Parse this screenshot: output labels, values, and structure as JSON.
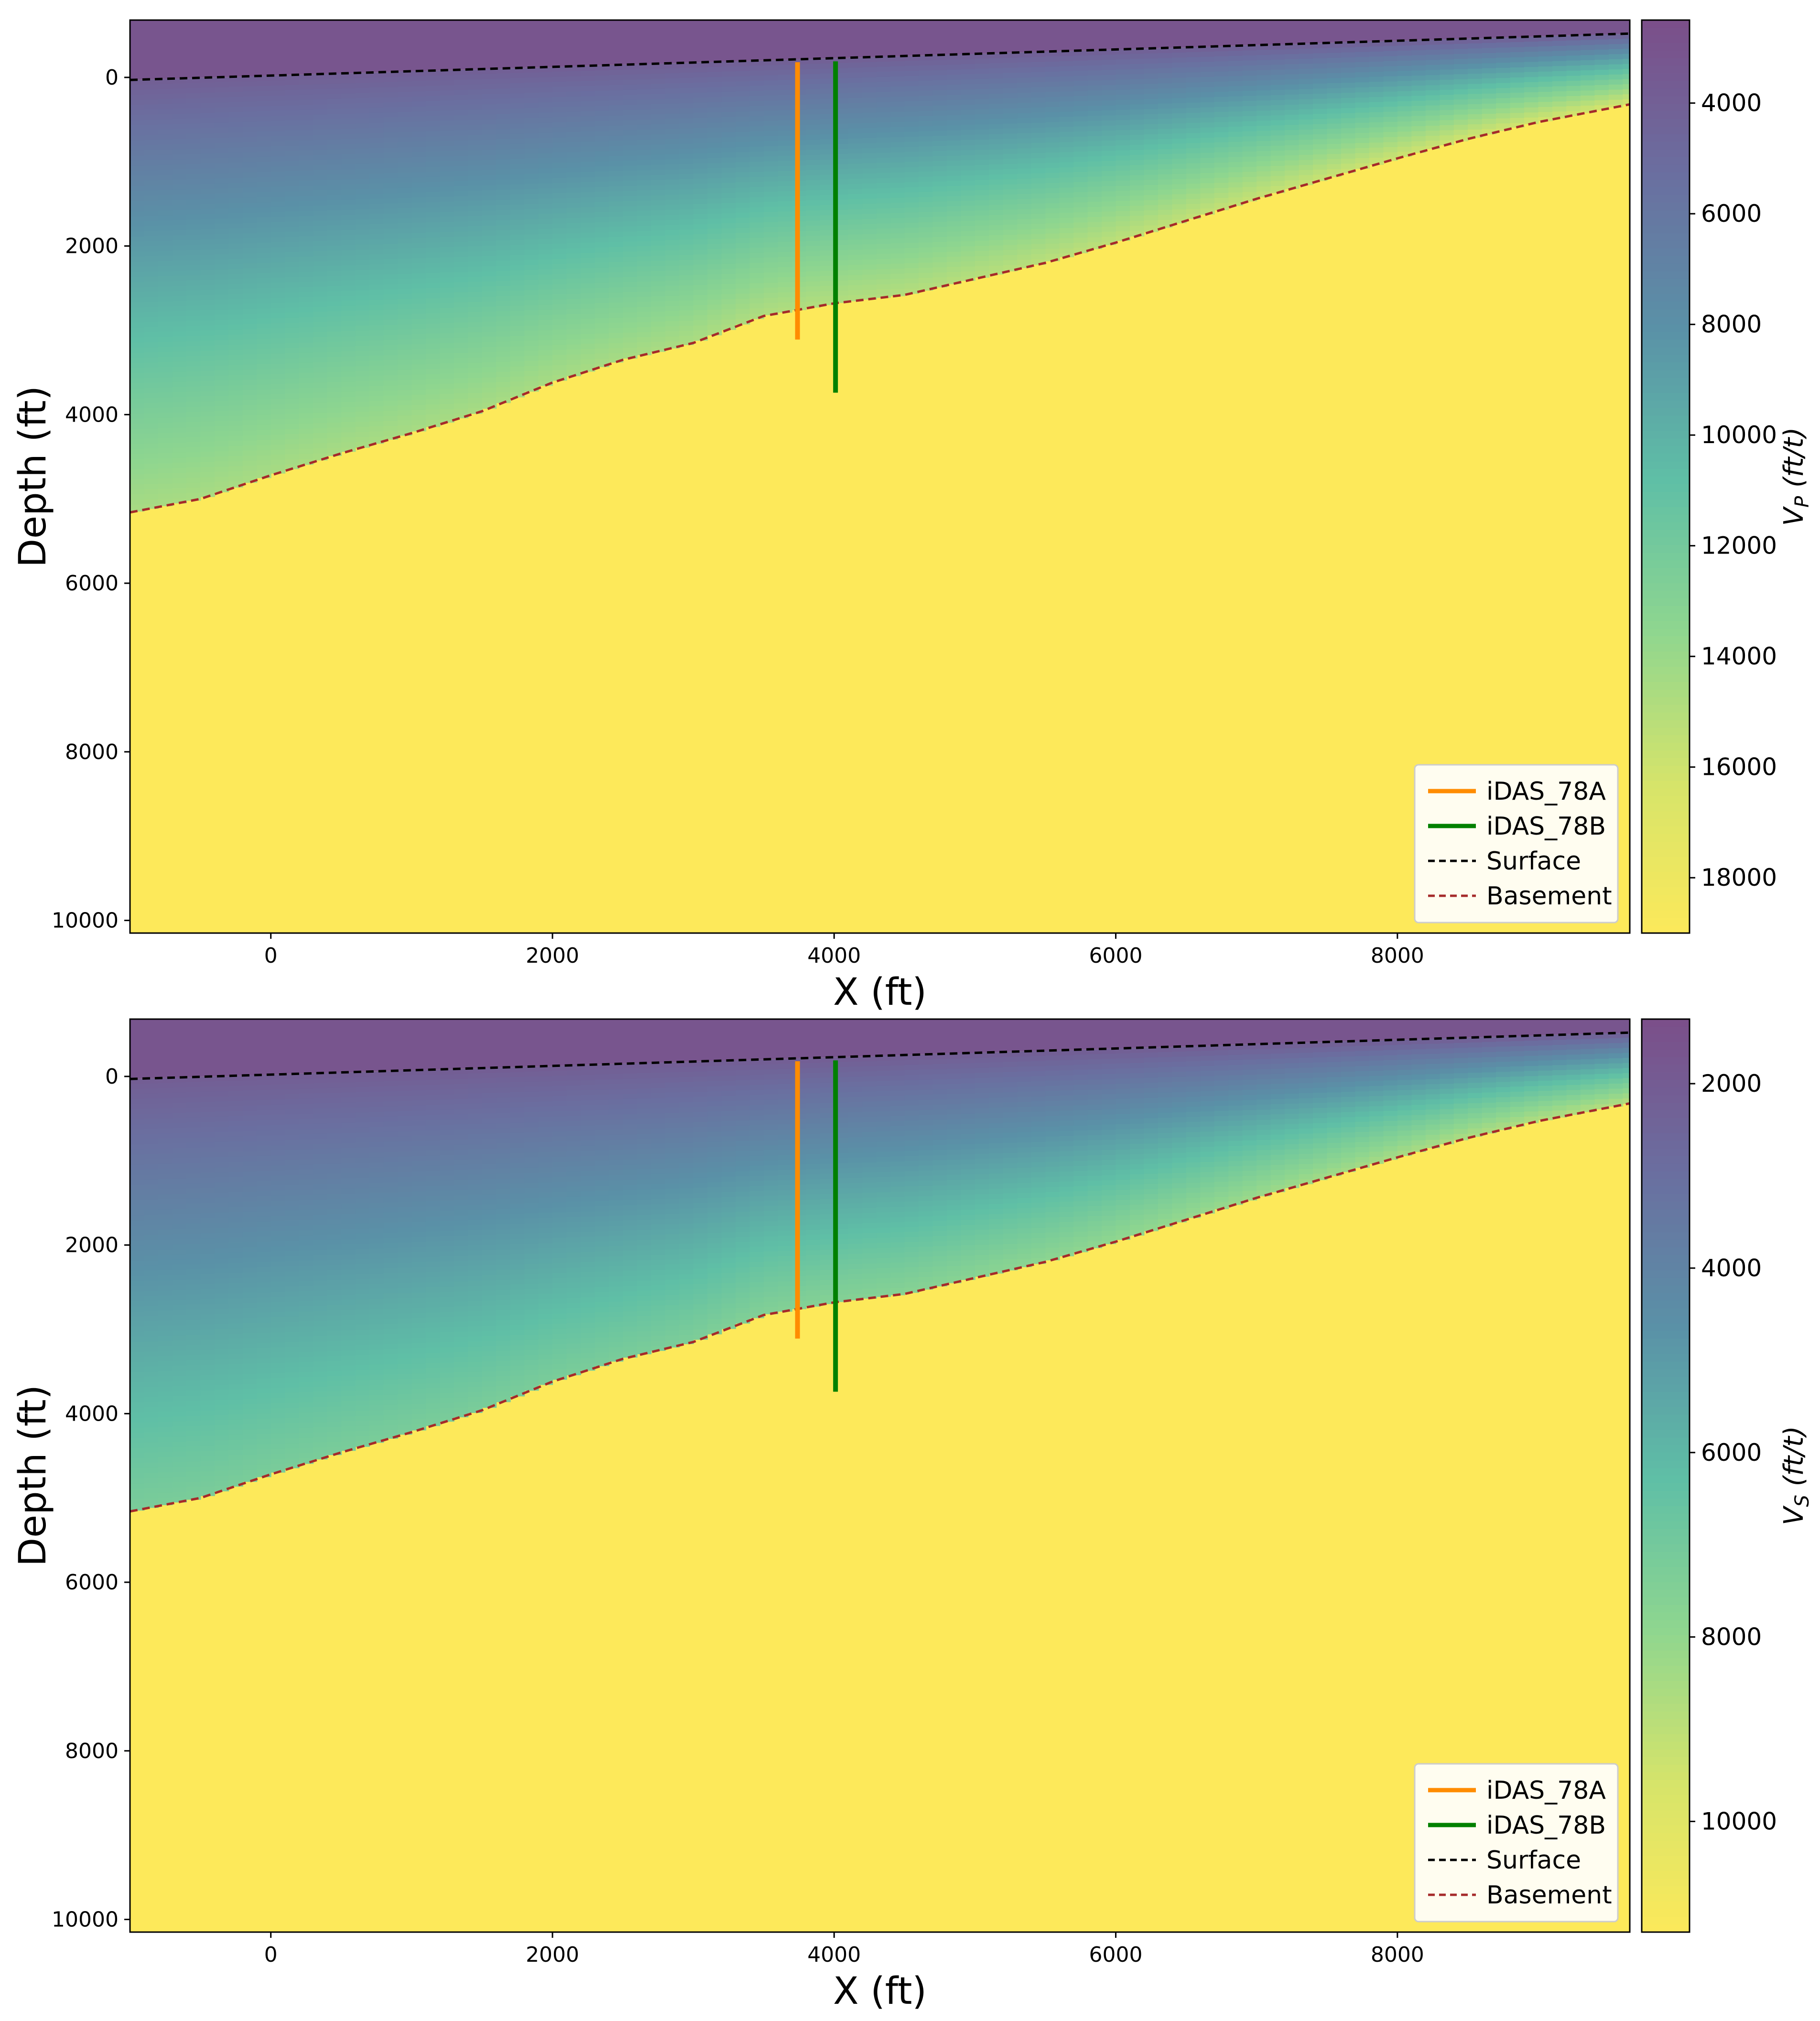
{
  "colors": {
    "basement_fill": "#fde95a",
    "iDAS_78A": "#ff8c00",
    "iDAS_78B": "#008000",
    "surface_line": "#000000",
    "basement_line": "#a52a2a",
    "colormap": [
      "#7b4f8a",
      "#6a6fa0",
      "#5a91a7",
      "#5fbfa6",
      "#8fd68f",
      "#d6e46a",
      "#fde95a"
    ]
  },
  "chart_data": [
    {
      "type": "heatmap",
      "title": "",
      "xlabel": "X (ft)",
      "ylabel": "Depth (ft)",
      "xlim": [
        -1000,
        9650
      ],
      "ylim": [
        10150,
        -680
      ],
      "x_ticks": [
        "0",
        "2000",
        "4000",
        "6000",
        "8000"
      ],
      "y_ticks": [
        "0",
        "2000",
        "4000",
        "6000",
        "8000",
        "10000"
      ],
      "colorbar": {
        "label": "V_P (ft/t)",
        "range": [
          2500,
          19000
        ],
        "ticks": [
          "4000",
          "6000",
          "8000",
          "10000",
          "12000",
          "14000",
          "16000",
          "18000"
        ]
      },
      "field": {
        "surface_value": 3800,
        "max_sediment_value": 14500,
        "basement_value": 19000
      },
      "grid": false,
      "legend_position": "lower-right",
      "legend": [
        "iDAS_78A",
        "iDAS_78B",
        "Surface",
        "Basement"
      ],
      "series": [
        {
          "name": "iDAS_78A",
          "kind": "well",
          "x": 3740,
          "depth_range": [
            -180,
            3110
          ]
        },
        {
          "name": "iDAS_78B",
          "kind": "well",
          "x": 4010,
          "depth_range": [
            -190,
            3740
          ]
        },
        {
          "name": "Surface",
          "kind": "dashed-line",
          "x": [
            -1000,
            9650
          ],
          "y": [
            30,
            -520
          ]
        },
        {
          "name": "Basement",
          "kind": "dashed-line",
          "x": [
            -1000,
            -500,
            0,
            500,
            1000,
            1500,
            2000,
            2500,
            3000,
            3500,
            4000,
            4500,
            5000,
            5500,
            6000,
            6500,
            7000,
            7500,
            8000,
            8500,
            9000,
            9650
          ],
          "y": [
            5160,
            5000,
            4720,
            4460,
            4220,
            3960,
            3620,
            3350,
            3150,
            2830,
            2680,
            2580,
            2390,
            2200,
            1960,
            1700,
            1440,
            1200,
            960,
            730,
            530,
            320
          ]
        }
      ]
    },
    {
      "type": "heatmap",
      "title": "",
      "xlabel": "X (ft)",
      "ylabel": "Depth (ft)",
      "xlim": [
        -1000,
        9650
      ],
      "ylim": [
        10150,
        -680
      ],
      "x_ticks": [
        "0",
        "2000",
        "4000",
        "6000",
        "8000"
      ],
      "y_ticks": [
        "0",
        "2000",
        "4000",
        "6000",
        "8000",
        "10000"
      ],
      "colorbar": {
        "label": "V_S (ft/t)",
        "range": [
          1300,
          11200
        ],
        "ticks": [
          "2000",
          "4000",
          "6000",
          "8000",
          "10000"
        ]
      },
      "field": {
        "surface_value": 2000,
        "max_sediment_value": 7200,
        "basement_value": 11200
      },
      "grid": false,
      "legend_position": "lower-right",
      "legend": [
        "iDAS_78A",
        "iDAS_78B",
        "Surface",
        "Basement"
      ],
      "series": [
        {
          "name": "iDAS_78A",
          "kind": "well",
          "x": 3740,
          "depth_range": [
            -180,
            3110
          ]
        },
        {
          "name": "iDAS_78B",
          "kind": "well",
          "x": 4010,
          "depth_range": [
            -190,
            3740
          ]
        },
        {
          "name": "Surface",
          "kind": "dashed-line",
          "x": [
            -1000,
            9650
          ],
          "y": [
            30,
            -520
          ]
        },
        {
          "name": "Basement",
          "kind": "dashed-line",
          "x": [
            -1000,
            -500,
            0,
            500,
            1000,
            1500,
            2000,
            2500,
            3000,
            3500,
            4000,
            4500,
            5000,
            5500,
            6000,
            6500,
            7000,
            7500,
            8000,
            8500,
            9000,
            9650
          ],
          "y": [
            5160,
            5000,
            4720,
            4460,
            4220,
            3960,
            3620,
            3350,
            3150,
            2830,
            2680,
            2580,
            2390,
            2200,
            1960,
            1700,
            1440,
            1200,
            960,
            730,
            530,
            320
          ]
        }
      ]
    }
  ]
}
